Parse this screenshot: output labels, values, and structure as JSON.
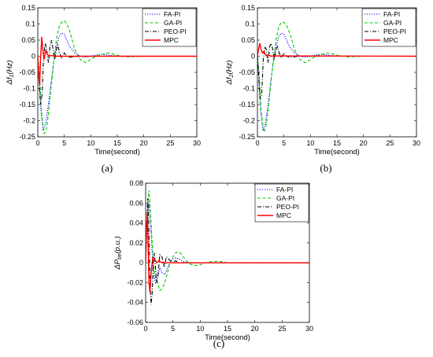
{
  "chart_data": [
    {
      "type": "line",
      "panel_label": "(a)",
      "xlabel": "Time(second)",
      "ylabel": {
        "prefix": "Δf",
        "sub": "1",
        "suffix": "(Hz)"
      },
      "xlim": [
        0,
        30
      ],
      "ylim": [
        -0.25,
        0.15
      ],
      "xticks": [
        "0",
        "5",
        "10",
        "15",
        "20",
        "25",
        "30"
      ],
      "yticks": [
        "-0.25",
        "-0.2",
        "-0.15",
        "-0.1",
        "-0.05",
        "0",
        "0.05",
        "0.1",
        "0.15"
      ],
      "legend_position": "top-right",
      "series": [
        {
          "name": "FA-PI",
          "color": "#0000ff",
          "dash": "dotted",
          "x": [
            0,
            0.3,
            0.6,
            1.0,
            1.5,
            2.0,
            2.5,
            3.0,
            3.5,
            4.0,
            4.5,
            5.0,
            5.5,
            6.0,
            7.0,
            8.0,
            9.0,
            10.0,
            11.0,
            12.0,
            14.0,
            16.0,
            18.0,
            30.0
          ],
          "y": [
            0,
            -0.08,
            -0.17,
            -0.23,
            -0.21,
            -0.15,
            -0.08,
            -0.02,
            0.03,
            0.06,
            0.072,
            0.068,
            0.05,
            0.03,
            0.01,
            0.0,
            -0.003,
            0.0,
            0.004,
            0.006,
            0.002,
            0.0,
            0.0,
            0.0
          ]
        },
        {
          "name": "GA-PI",
          "color": "#00cc00",
          "dash": "dashed",
          "x": [
            0,
            0.3,
            0.7,
            1.2,
            1.6,
            2.0,
            2.5,
            3.0,
            3.5,
            4.0,
            4.5,
            5.0,
            5.5,
            6.0,
            6.5,
            7.0,
            8.0,
            9.0,
            10.0,
            11.0,
            12.0,
            13.0,
            14.0,
            15.0,
            16.0,
            17.0,
            20.0,
            30.0
          ],
          "y": [
            0,
            -0.05,
            -0.17,
            -0.24,
            -0.23,
            -0.18,
            -0.1,
            -0.02,
            0.05,
            0.09,
            0.105,
            0.11,
            0.1,
            0.08,
            0.05,
            0.02,
            -0.01,
            -0.02,
            -0.01,
            0.0,
            0.005,
            0.01,
            0.008,
            0.003,
            0.0,
            -0.002,
            0.0,
            0.0
          ]
        },
        {
          "name": "PEO-PI",
          "color": "#000000",
          "dash": "dashdot",
          "x": [
            0,
            0.2,
            0.5,
            0.8,
            1.1,
            1.4,
            1.7,
            2.0,
            2.3,
            2.6,
            2.9,
            3.2,
            3.5,
            3.8,
            4.1,
            4.5,
            5.0,
            5.5,
            6.0,
            8.0,
            30.0
          ],
          "y": [
            0,
            -0.06,
            -0.15,
            -0.12,
            0.0,
            0.04,
            0.02,
            -0.02,
            0.03,
            0.05,
            0.02,
            -0.01,
            0.02,
            0.035,
            0.01,
            -0.005,
            0.01,
            0.0,
            -0.003,
            0.0,
            0.0
          ]
        },
        {
          "name": "MPC",
          "color": "#ff0000",
          "dash": "solid",
          "x": [
            0,
            0.15,
            0.35,
            0.55,
            0.75,
            0.95,
            1.2,
            1.5,
            1.8,
            2.2,
            2.6,
            3.0,
            30.0
          ],
          "y": [
            0,
            -0.06,
            -0.09,
            0.0,
            0.06,
            0.02,
            -0.01,
            0.02,
            0.005,
            0.0,
            0.003,
            0.0,
            0.0
          ]
        }
      ]
    },
    {
      "type": "line",
      "panel_label": "(b)",
      "xlabel": "Time(second)",
      "ylabel": {
        "prefix": "Δf",
        "sub": "2",
        "suffix": "(Hz)"
      },
      "xlim": [
        0,
        30
      ],
      "ylim": [
        -0.25,
        0.15
      ],
      "xticks": [
        "0",
        "5",
        "10",
        "15",
        "20",
        "25",
        "30"
      ],
      "yticks": [
        "-0.25",
        "-0.2",
        "-0.15",
        "-0.1",
        "-0.05",
        "0",
        "0.05",
        "0.1",
        "0.15"
      ],
      "legend_position": "top-right",
      "series": [
        {
          "name": "FA-PI",
          "color": "#0000ff",
          "dash": "dotted",
          "x": [
            0,
            0.3,
            0.6,
            1.0,
            1.5,
            2.0,
            2.5,
            3.0,
            3.5,
            4.0,
            4.5,
            5.0,
            5.5,
            6.0,
            7.0,
            8.0,
            9.0,
            10.0,
            11.0,
            12.0,
            14.0,
            16.0,
            18.0,
            30.0
          ],
          "y": [
            0,
            -0.08,
            -0.17,
            -0.23,
            -0.21,
            -0.15,
            -0.08,
            -0.02,
            0.03,
            0.06,
            0.072,
            0.068,
            0.05,
            0.03,
            0.01,
            0.0,
            -0.003,
            0.0,
            0.004,
            0.006,
            0.002,
            0.0,
            0.0,
            0.0
          ]
        },
        {
          "name": "GA-PI",
          "color": "#00cc00",
          "dash": "dashed",
          "x": [
            0,
            0.3,
            0.7,
            1.2,
            1.6,
            2.0,
            2.5,
            3.0,
            3.5,
            4.0,
            4.5,
            5.0,
            5.5,
            6.0,
            6.5,
            7.0,
            8.0,
            9.0,
            10.0,
            11.0,
            12.0,
            13.0,
            14.0,
            15.0,
            16.0,
            17.0,
            20.0,
            30.0
          ],
          "y": [
            0,
            -0.05,
            -0.17,
            -0.235,
            -0.22,
            -0.17,
            -0.09,
            -0.01,
            0.05,
            0.09,
            0.105,
            0.105,
            0.095,
            0.075,
            0.05,
            0.02,
            -0.01,
            -0.02,
            -0.01,
            0.0,
            0.005,
            0.01,
            0.008,
            0.003,
            0.0,
            -0.002,
            0.0,
            0.0
          ]
        },
        {
          "name": "PEO-PI",
          "color": "#000000",
          "dash": "dashdot",
          "x": [
            0,
            0.2,
            0.5,
            0.8,
            1.1,
            1.4,
            1.7,
            2.0,
            2.3,
            2.6,
            2.9,
            3.2,
            3.5,
            3.8,
            4.1,
            4.5,
            5.0,
            5.5,
            6.0,
            8.0,
            30.0
          ],
          "y": [
            0,
            -0.05,
            -0.13,
            -0.12,
            -0.01,
            0.03,
            0.02,
            -0.02,
            0.03,
            0.04,
            0.02,
            -0.01,
            0.02,
            0.03,
            0.01,
            -0.005,
            0.01,
            0.0,
            -0.003,
            0.0,
            0.0
          ]
        },
        {
          "name": "MPC",
          "color": "#ff0000",
          "dash": "solid",
          "x": [
            0,
            0.2,
            0.45,
            0.7,
            0.95,
            1.2,
            1.5,
            1.8,
            2.2,
            2.6,
            3.0,
            30.0
          ],
          "y": [
            0,
            0.02,
            0.04,
            0.02,
            0.01,
            0.015,
            0.005,
            0.0,
            0.003,
            0.0,
            0.001,
            0.0
          ]
        }
      ]
    },
    {
      "type": "line",
      "panel_label": "(c)",
      "xlabel": "Time(second)",
      "ylabel": {
        "prefix": "ΔP",
        "sub": "tie",
        "suffix": "(p.u.)"
      },
      "xlim": [
        0,
        30
      ],
      "ylim": [
        -0.06,
        0.08
      ],
      "xticks": [
        "0",
        "5",
        "10",
        "15",
        "20",
        "25",
        "30"
      ],
      "yticks": [
        "-0.06",
        "-0.04",
        "-0.02",
        "0",
        "0.02",
        "0.04",
        "0.06",
        "0.08"
      ],
      "legend_position": "top-right",
      "series": [
        {
          "name": "FA-PI",
          "color": "#0000ff",
          "dash": "dotted",
          "x": [
            0,
            0.3,
            0.6,
            1.0,
            1.4,
            1.8,
            2.2,
            2.6,
            3.0,
            3.5,
            4.0,
            4.5,
            5.0,
            5.5,
            6.0,
            7.0,
            8.0,
            10.0,
            30.0
          ],
          "y": [
            0,
            0.04,
            0.06,
            0.03,
            -0.01,
            -0.02,
            -0.015,
            -0.005,
            -0.01,
            -0.012,
            -0.005,
            0.0,
            0.004,
            0.005,
            0.004,
            0.001,
            0.0,
            0.0,
            0.0
          ]
        },
        {
          "name": "GA-PI",
          "color": "#00cc00",
          "dash": "dashed",
          "x": [
            0,
            0.3,
            0.6,
            1.0,
            1.4,
            1.8,
            2.2,
            2.6,
            3.0,
            3.5,
            4.0,
            4.5,
            5.0,
            5.5,
            6.0,
            6.5,
            7.0,
            8.0,
            9.0,
            10.0,
            11.0,
            12.0,
            13.0,
            14.0,
            15.0,
            16.0,
            18.0,
            30.0
          ],
          "y": [
            0,
            0.05,
            0.073,
            0.04,
            0.0,
            -0.015,
            -0.02,
            -0.028,
            -0.026,
            -0.02,
            -0.01,
            0.0,
            0.006,
            0.01,
            0.011,
            0.009,
            0.005,
            -0.001,
            -0.003,
            -0.002,
            0.0,
            0.001,
            0.0015,
            0.001,
            0.0,
            0.0,
            0.0,
            0.0
          ]
        },
        {
          "name": "PEO-PI",
          "color": "#000000",
          "dash": "dashdot",
          "x": [
            0,
            0.2,
            0.4,
            0.6,
            0.8,
            1.0,
            1.2,
            1.4,
            1.6,
            1.8,
            2.0,
            2.3,
            2.6,
            3.0,
            3.4,
            3.8,
            4.2,
            4.8,
            5.5,
            6.0,
            8.0,
            30.0
          ],
          "y": [
            0,
            0.04,
            0.065,
            0.03,
            -0.02,
            -0.042,
            -0.03,
            0.0,
            0.01,
            -0.005,
            -0.02,
            -0.01,
            0.008,
            0.006,
            -0.004,
            0.006,
            0.004,
            0.0,
            0.002,
            0.0,
            0.0,
            0.0
          ]
        },
        {
          "name": "MPC",
          "color": "#ff0000",
          "dash": "solid",
          "x": [
            0,
            0.15,
            0.3,
            0.45,
            0.6,
            0.8,
            1.0,
            1.3,
            1.6,
            2.0,
            2.4,
            3.0,
            30.0
          ],
          "y": [
            0,
            0.035,
            0.05,
            0.02,
            -0.02,
            -0.03,
            -0.01,
            0.005,
            0.004,
            0.0,
            0.002,
            0.0,
            0.0
          ]
        }
      ]
    }
  ]
}
